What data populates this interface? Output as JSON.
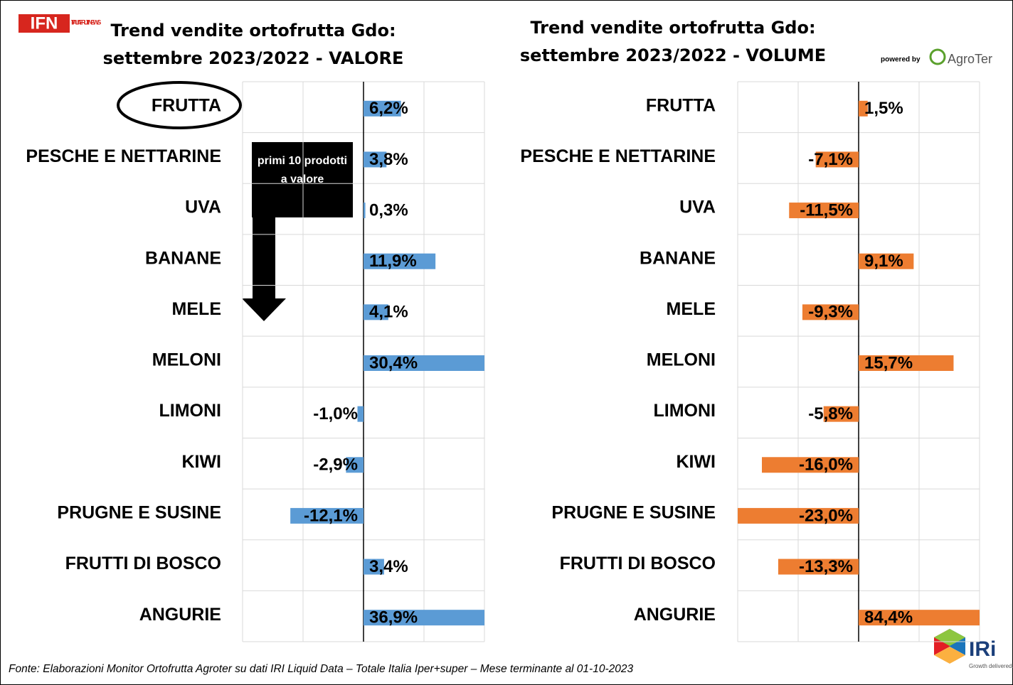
{
  "header": {
    "logo": "IFN",
    "logo_sub": "ITALIA FRUIT NEWS",
    "powered_by": "powered by",
    "agroter": "AgroTer",
    "annotation": "primi 10 prodotti a valore"
  },
  "chart_data": [
    {
      "type": "bar",
      "orientation": "horizontal",
      "title": "Trend vendite ortofrutta Gdo: settembre 2023/2022 - VALORE",
      "categories": [
        "FRUTTA",
        "PESCHE E NETTARINE",
        "UVA",
        "BANANE",
        "MELE",
        "MELONI",
        "LIMONI",
        "KIWI",
        "PRUGNE E SUSINE",
        "FRUTTI DI BOSCO",
        "ANGURIE"
      ],
      "values": [
        6.2,
        3.8,
        0.3,
        11.9,
        4.1,
        30.4,
        -1.0,
        -2.9,
        -12.1,
        3.4,
        36.9
      ],
      "value_labels": [
        "6,2%",
        "3,8%",
        "0,3%",
        "11,9%",
        "4,1%",
        "30,4%",
        "-1,0%",
        "-2,9%",
        "-12,1%",
        "3,4%",
        "36,9%"
      ],
      "color": "#5b9bd5",
      "xlim": [
        -20,
        20
      ],
      "xticks": [
        -20,
        -10,
        0,
        10,
        20
      ],
      "grid": true
    },
    {
      "type": "bar",
      "orientation": "horizontal",
      "title": "Trend vendite ortofrutta Gdo: settembre 2023/2022 - VOLUME",
      "categories": [
        "FRUTTA",
        "PESCHE E NETTARINE",
        "UVA",
        "BANANE",
        "MELE",
        "MELONI",
        "LIMONI",
        "KIWI",
        "PRUGNE E SUSINE",
        "FRUTTI DI BOSCO",
        "ANGURIE"
      ],
      "values": [
        1.5,
        -7.1,
        -11.5,
        9.1,
        -9.3,
        15.7,
        -5.8,
        -16.0,
        -23.0,
        -13.3,
        84.4
      ],
      "value_labels": [
        "1,5%",
        "-7,1%",
        "-11,5%",
        "9,1%",
        "-9,3%",
        "15,7%",
        "-5,8%",
        "-16,0%",
        "-23,0%",
        "-13,3%",
        "84,4%"
      ],
      "color": "#ed7d31",
      "xlim": [
        -20,
        20
      ],
      "xticks": [
        -20,
        -10,
        0,
        10,
        20
      ],
      "grid": true
    }
  ],
  "footer": {
    "source": "Fonte: Elaborazioni Monitor Ortofrutta Agroter su dati IRI Liquid Data – Totale Italia Iper+super – Mese terminante al 01-10-2023",
    "iri": "IRi",
    "iri_tagline": "Growth delivered."
  }
}
